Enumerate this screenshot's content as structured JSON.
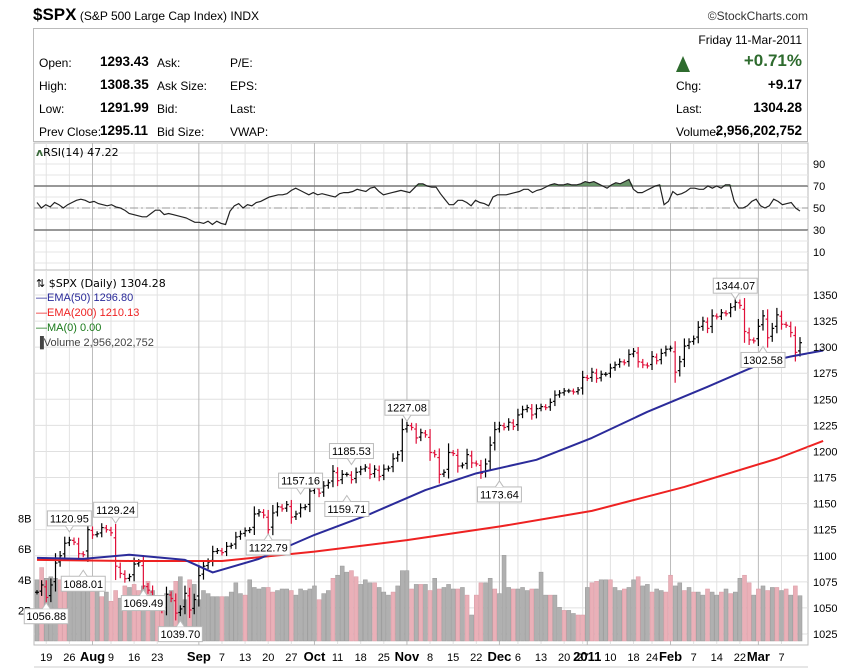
{
  "header": {
    "symbol": "$SPX",
    "name": "(S&P 500 Large Cap Index)",
    "exchange": "INDX",
    "copyright": "©StockCharts.com"
  },
  "quote": {
    "date": "Friday  11-Mar-2011",
    "pct_change": "+0.71%",
    "direction": "up",
    "left": [
      {
        "label": "Open:",
        "value": "1293.43",
        "label2": "Ask:",
        "label3": "P/E:"
      },
      {
        "label": "High:",
        "value": "1308.35",
        "label2": "Ask Size:",
        "label3": "EPS:"
      },
      {
        "label": "Low:",
        "value": "1291.99",
        "label2": "Bid:",
        "label3": "Last:"
      },
      {
        "label": "Prev Close:",
        "value": "1295.11",
        "label2": "Bid Size:",
        "label3": "VWAP:"
      }
    ],
    "right": [
      {
        "label": "Chg:",
        "value": "+9.17"
      },
      {
        "label": "Last:",
        "value": "1304.28"
      },
      {
        "label": "Volume:",
        "value": "2,956,202,752"
      }
    ]
  },
  "colors": {
    "up_bar": "#000000",
    "down_bar": "#e0103a",
    "ema50": "#2b2b9a",
    "ema200": "#ee2222",
    "ma0": "#1a7a1a",
    "rsi_fill": "#5a8a5a",
    "vol_up": "#b0b0b0",
    "vol_down": "#eab0b8",
    "grid": "#d8d8d8"
  },
  "chart_data": [
    {
      "type": "line",
      "title": "RSI(14) 47.22",
      "legend_label": "RSI(14) 47.22",
      "y_ticks": [
        90,
        70,
        50,
        30,
        10
      ],
      "ylim": [
        0,
        100
      ],
      "reference_lines": [
        70,
        50,
        30
      ],
      "values": [
        55,
        50,
        53,
        51,
        55,
        53,
        50,
        53,
        55,
        57,
        58,
        57,
        55,
        56,
        54,
        53,
        52,
        53,
        51,
        50,
        48,
        45,
        44,
        43,
        42,
        42,
        45,
        48,
        48,
        44,
        45,
        44,
        43,
        42,
        41,
        39,
        37,
        37,
        36,
        38,
        35,
        38,
        36,
        35,
        47,
        52,
        54,
        50,
        53,
        52,
        55,
        56,
        58,
        60,
        61,
        62,
        62,
        63,
        66,
        68,
        66,
        64,
        62,
        64,
        62,
        63,
        62,
        61,
        60,
        63,
        64,
        64,
        65,
        67,
        66,
        65,
        68,
        69,
        65,
        62,
        63,
        64,
        65,
        66,
        65,
        64,
        68,
        72,
        72,
        70,
        69,
        69,
        63,
        58,
        53,
        53,
        57,
        57,
        55,
        52,
        57,
        55,
        54,
        52,
        60,
        62,
        62,
        62,
        63,
        64,
        65,
        67,
        67,
        64,
        66,
        67,
        69,
        71,
        72,
        71,
        71,
        72,
        71,
        71,
        72,
        74,
        73,
        74,
        72,
        70,
        68,
        71,
        73,
        72,
        74,
        76,
        67,
        64,
        64,
        66,
        68,
        70,
        71,
        53,
        56,
        65,
        62,
        63,
        65,
        68,
        68,
        67,
        67,
        70,
        68,
        70,
        68,
        71,
        71,
        56,
        50,
        50,
        52,
        56,
        58,
        52,
        50,
        52,
        58,
        56,
        53,
        54,
        55,
        50,
        47.22
      ]
    },
    {
      "type": "ohlc",
      "title": "$SPX (Daily) 1304.28",
      "ylim": [
        1015,
        1360
      ],
      "y_ticks": [
        1350,
        1325,
        1300,
        1275,
        1250,
        1225,
        1200,
        1175,
        1150,
        1125,
        1100,
        1075,
        1050,
        1025
      ],
      "x_tick_labels": [
        "19",
        "26",
        "Aug",
        "9",
        "16",
        "23",
        "Sep",
        "7",
        "13",
        "20",
        "27",
        "Oct",
        "11",
        "18",
        "25",
        "Nov",
        "8",
        "15",
        "22",
        "Dec",
        "6",
        "13",
        "20",
        "27",
        "2011",
        "10",
        "18",
        "24",
        "Feb",
        "7",
        "14",
        "22",
        "Mar",
        "7"
      ],
      "bold_x_tick_labels": [
        "Aug",
        "Sep",
        "Oct",
        "Nov",
        "Dec",
        "2011",
        "Feb",
        "Mar"
      ],
      "closes": [
        1065,
        1072,
        1060,
        1072,
        1093,
        1100,
        1112,
        1115,
        1113,
        1102,
        1101,
        1125,
        1120,
        1121,
        1127,
        1125,
        1122,
        1090,
        1083,
        1078,
        1080,
        1092,
        1094,
        1071,
        1067,
        1055,
        1051,
        1048,
        1063,
        1059,
        1045,
        1049,
        1064,
        1048,
        1058,
        1081,
        1090,
        1094,
        1104,
        1105,
        1103,
        1109,
        1110,
        1118,
        1121,
        1124,
        1125,
        1140,
        1142,
        1139,
        1125,
        1141,
        1147,
        1145,
        1149,
        1137,
        1140,
        1146,
        1147,
        1162,
        1165,
        1160,
        1167,
        1170,
        1181,
        1172,
        1178,
        1178,
        1173,
        1180,
        1183,
        1185,
        1178,
        1183,
        1176,
        1183,
        1184,
        1193,
        1197,
        1221,
        1225,
        1223,
        1213,
        1218,
        1216,
        1199,
        1197,
        1178,
        1180,
        1199,
        1198,
        1186,
        1187,
        1197,
        1189,
        1188,
        1179,
        1188,
        1206,
        1221,
        1225,
        1223,
        1228,
        1224,
        1235,
        1240,
        1242,
        1235,
        1241,
        1243,
        1242,
        1247,
        1254,
        1256,
        1258,
        1258,
        1257,
        1259,
        1271,
        1270,
        1276,
        1270,
        1274,
        1274,
        1280,
        1283,
        1286,
        1285,
        1293,
        1296,
        1286,
        1283,
        1282,
        1291,
        1287,
        1294,
        1298,
        1299,
        1276,
        1286,
        1301,
        1305,
        1308,
        1319,
        1325,
        1318,
        1330,
        1329,
        1333,
        1332,
        1338,
        1343,
        1340,
        1315,
        1307,
        1306,
        1320,
        1330,
        1309,
        1318,
        1331,
        1322,
        1321,
        1314,
        1295,
        1304.28
      ],
      "annotations": [
        {
          "label": "1120.95",
          "value": 1120.95
        },
        {
          "label": "1129.24",
          "value": 1129.24
        },
        {
          "label": "1088.01",
          "value": 1088.01
        },
        {
          "label": "1056.88",
          "value": 1056.88
        },
        {
          "label": "1069.49",
          "value": 1069.49
        },
        {
          "label": "1039.70",
          "value": 1039.7
        },
        {
          "label": "1122.79",
          "value": 1122.79
        },
        {
          "label": "1157.16",
          "value": 1157.16
        },
        {
          "label": "1159.71",
          "value": 1159.71
        },
        {
          "label": "1185.53",
          "value": 1185.53
        },
        {
          "label": "1227.08",
          "value": 1227.08
        },
        {
          "label": "1173.64",
          "value": 1173.64
        },
        {
          "label": "1344.07",
          "value": 1344.07
        },
        {
          "label": "1302.58",
          "value": 1302.58
        }
      ],
      "series": [
        {
          "name": "EMA(50)",
          "legend": "EMA(50) 1296.80",
          "last": 1296.8,
          "start": 1098,
          "points": [
            [
              0,
              1098
            ],
            [
              10,
              1097
            ],
            [
              20,
              1101
            ],
            [
              32,
              1096
            ],
            [
              38,
              1084
            ],
            [
              48,
              1097
            ],
            [
              60,
              1120
            ],
            [
              72,
              1140
            ],
            [
              84,
              1163
            ],
            [
              95,
              1179
            ],
            [
              108,
              1192
            ],
            [
              120,
              1213
            ],
            [
              132,
              1238
            ],
            [
              145,
              1262
            ],
            [
              157,
              1285
            ],
            [
              163,
              1291
            ],
            [
              170,
              1296.8
            ]
          ]
        },
        {
          "name": "EMA(200)",
          "legend": "EMA(200) 1210.13",
          "last": 1210.13,
          "points": [
            [
              0,
              1096
            ],
            [
              20,
              1095
            ],
            [
              40,
              1095
            ],
            [
              60,
              1104
            ],
            [
              80,
              1115
            ],
            [
              100,
              1128
            ],
            [
              120,
              1143
            ],
            [
              140,
              1166
            ],
            [
              160,
              1193
            ],
            [
              170,
              1210.13
            ]
          ]
        },
        {
          "name": "MA(0)",
          "legend": "MA(0) 0.00",
          "last": 0.0,
          "points": []
        }
      ]
    },
    {
      "type": "bar",
      "title": "Volume 2,956,202,752",
      "legend_label": "Volume 2,956,202,752",
      "y_ticks": [
        "8B",
        "6B",
        "4B",
        "2B"
      ],
      "ylim_billions": [
        0,
        10
      ],
      "values_billions": [
        4.0,
        4.8,
        4.1,
        4.2,
        4.1,
        4.0,
        3.5,
        3.8,
        3.6,
        3.9,
        3.6,
        3.5,
        3.4,
        3.3,
        2.9,
        3.2,
        2.6,
        3.3,
        2.8,
        3.6,
        3.5,
        3.7,
        3.3,
        3.6,
        3.9,
        3.3,
        2.8,
        2.6,
        3.1,
        3.3,
        3.9,
        4.2,
        2.7,
        4.0,
        3.7,
        2.7,
        3.3,
        3.1,
        2.9,
        2.9,
        2.9,
        2.9,
        3.2,
        3.8,
        3.1,
        3.0,
        4.0,
        3.5,
        3.4,
        3.5,
        3.5,
        3.2,
        3.3,
        3.4,
        3.4,
        3.3,
        3.0,
        3.4,
        3.3,
        3.4,
        3.6,
        2.7,
        3.1,
        3.3,
        4.1,
        4.3,
        4.9,
        4.5,
        4.6,
        4.2,
        3.7,
        4.0,
        3.8,
        3.8,
        3.5,
        3.2,
        3.0,
        3.2,
        3.6,
        4.6,
        4.6,
        3.4,
        3.7,
        3.7,
        3.7,
        3.3,
        4.1,
        3.4,
        3.5,
        3.7,
        3.4,
        3.4,
        3.5,
        3.0,
        1.7,
        3.0,
        3.8,
        3.8,
        4.1,
        3.4,
        3.1,
        5.6,
        3.5,
        3.4,
        3.4,
        3.5,
        3.3,
        3.4,
        3.4,
        4.5,
        3.0,
        3.0,
        3.0,
        2.2,
        2.0,
        2.0,
        1.8,
        1.7,
        1.7,
        3.5,
        3.8,
        3.9,
        4.0,
        4.0,
        4.0,
        3.5,
        3.3,
        3.4,
        3.5,
        4.0,
        4.2,
        3.6,
        3.7,
        3.2,
        3.4,
        3.3,
        3.2,
        4.3,
        3.6,
        3.8,
        3.3,
        3.5,
        3.2,
        3.2,
        3.0,
        3.4,
        3.2,
        3.0,
        3.2,
        3.4,
        3.1,
        3.2,
        4.1,
        4.3,
        3.8,
        3.0,
        3.4,
        3.6,
        3.3,
        3.5,
        3.5,
        3.3,
        3.4,
        3.0,
        3.6,
        2.96
      ],
      "down_days": [
        1,
        5,
        6,
        12,
        14,
        16,
        17,
        19,
        21,
        22,
        24,
        26,
        27,
        30,
        33,
        40,
        45,
        50,
        51,
        55,
        61,
        64,
        68,
        69,
        73,
        77,
        81,
        83,
        85,
        87,
        91,
        93,
        95,
        96,
        99,
        103,
        107,
        111,
        114,
        117,
        118,
        120,
        121,
        124,
        127,
        130,
        133,
        136,
        137,
        140,
        142,
        145,
        148,
        150,
        153,
        154,
        156,
        158,
        160,
        162,
        164,
        166,
        168
      ]
    }
  ],
  "price_legend": {
    "main": "$SPX (Daily) 1304.28",
    "ema50": "EMA(50) 1296.80",
    "ema200": "EMA(200) 1210.13",
    "ma0": "MA(0) 0.00",
    "volume": "Volume 2,956,202,752"
  }
}
